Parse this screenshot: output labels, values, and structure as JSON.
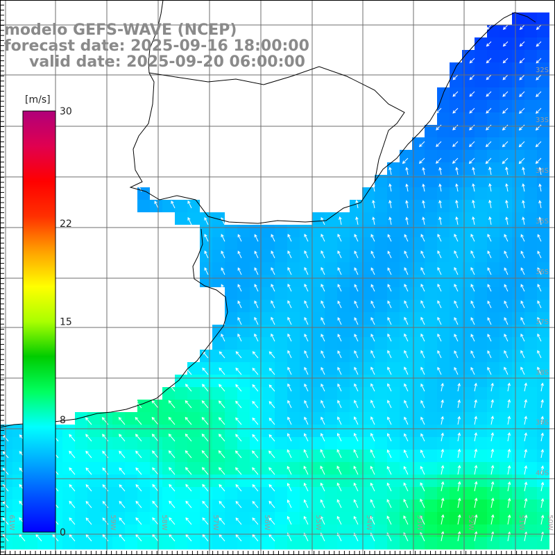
{
  "title": {
    "line1": "modelo GEFS-WAVE (NCEP)",
    "line2": "forecast date: 2025-09-16 18:00:00",
    "line3": "valid date: 2025-09-20 06:00:00"
  },
  "colorbar": {
    "unit": "[m/s]",
    "ticks": [
      {
        "label": "30",
        "value": 30
      },
      {
        "label": "22",
        "value": 22
      },
      {
        "label": "15",
        "value": 15
      },
      {
        "label": "8",
        "value": 8
      },
      {
        "label": "0",
        "value": 0
      }
    ],
    "min": 0,
    "max": 30,
    "colors": [
      "#0000ff",
      "#0050ff",
      "#00aaff",
      "#00ffff",
      "#00ff60",
      "#00cc00",
      "#aaff00",
      "#ffff00",
      "#ffa000",
      "#ff3000",
      "#ff0000",
      "#e00050",
      "#b0007a"
    ]
  },
  "latitude_labels": [
    "32S",
    "33S",
    "34S",
    "35S",
    "36S",
    "37S",
    "38S",
    "39S",
    "40S"
  ],
  "longitude_labels": [
    "61W",
    "59W",
    "58W",
    "57W",
    "56W",
    "55W",
    "54W",
    "53W",
    "52W",
    "51W",
    "50W"
  ],
  "colors": {
    "gridline": "#6e6e6e",
    "coastline": "#000000",
    "arrow": "#ffffff",
    "title": "#8a8a8a"
  }
}
